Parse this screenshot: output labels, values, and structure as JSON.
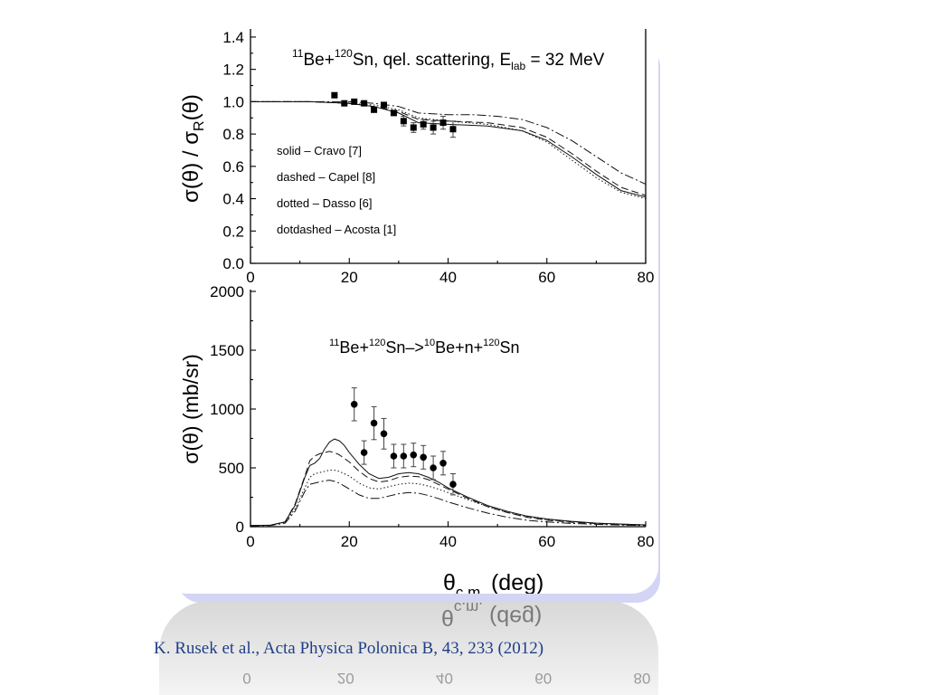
{
  "citation": "K. Rusek et al., Acta Physica Polonica B, 43, 233 (2012)",
  "chart_data": [
    {
      "type": "line",
      "title": {
        "pre": "11",
        "a": "Be+",
        "sup": "120",
        "b": "Sn, qel. scattering, E",
        "sub": "lab",
        "c": " = 32 MeV"
      },
      "xlabel": "",
      "ylabel": {
        "a": "σ(θ) / σ",
        "sub": "R",
        "b": "(θ)"
      },
      "xlim": [
        0,
        80
      ],
      "ylim": [
        0,
        1.45
      ],
      "xticks": [
        "0",
        "20",
        "40",
        "60",
        "80"
      ],
      "yticks": [
        "0.0",
        "0.2",
        "0.4",
        "0.6",
        "0.8",
        "1.0",
        "1.2",
        "1.4"
      ],
      "legend_position": "lower-left",
      "grid": false,
      "legend": [
        {
          "label": "solid – Cravo [7]",
          "dash": ""
        },
        {
          "label": "dashed –  Capel [8]",
          "dash": "8,4"
        },
        {
          "label": "dotted – Dasso [6]",
          "dash": "1.5,2.5"
        },
        {
          "label": "dotdashed – Acosta [1]",
          "dash": "10,3,2,3"
        }
      ],
      "series": [
        {
          "dash": "",
          "values": [
            [
              0,
              1.0
            ],
            [
              12,
              1.0
            ],
            [
              20,
              0.99
            ],
            [
              25,
              0.97
            ],
            [
              30,
              0.93
            ],
            [
              34,
              0.87
            ],
            [
              40,
              0.86
            ],
            [
              48,
              0.85
            ],
            [
              55,
              0.82
            ],
            [
              60,
              0.76
            ],
            [
              65,
              0.66
            ],
            [
              70,
              0.55
            ],
            [
              75,
              0.45
            ],
            [
              80,
              0.41
            ]
          ]
        },
        {
          "dash": "8,4",
          "values": [
            [
              0,
              1.0
            ],
            [
              12,
              1.0
            ],
            [
              20,
              0.99
            ],
            [
              25,
              0.97
            ],
            [
              30,
              0.94
            ],
            [
              34,
              0.89
            ],
            [
              40,
              0.88
            ],
            [
              48,
              0.87
            ],
            [
              55,
              0.84
            ],
            [
              60,
              0.78
            ],
            [
              65,
              0.68
            ],
            [
              70,
              0.57
            ],
            [
              75,
              0.47
            ],
            [
              80,
              0.42
            ]
          ]
        },
        {
          "dash": "1.5,2.5",
          "values": [
            [
              0,
              1.0
            ],
            [
              12,
              1.0
            ],
            [
              20,
              0.99
            ],
            [
              25,
              0.98
            ],
            [
              30,
              0.95
            ],
            [
              34,
              0.9
            ],
            [
              40,
              0.88
            ],
            [
              48,
              0.86
            ],
            [
              55,
              0.82
            ],
            [
              60,
              0.75
            ],
            [
              65,
              0.64
            ],
            [
              70,
              0.53
            ],
            [
              75,
              0.44
            ],
            [
              80,
              0.4
            ]
          ]
        },
        {
          "dash": "10,3,2,3",
          "values": [
            [
              0,
              1.0
            ],
            [
              12,
              1.0
            ],
            [
              20,
              1.0
            ],
            [
              25,
              0.99
            ],
            [
              30,
              0.97
            ],
            [
              34,
              0.93
            ],
            [
              40,
              0.92
            ],
            [
              45,
              0.92
            ],
            [
              50,
              0.91
            ],
            [
              55,
              0.89
            ],
            [
              60,
              0.84
            ],
            [
              65,
              0.76
            ],
            [
              70,
              0.66
            ],
            [
              75,
              0.56
            ],
            [
              80,
              0.49
            ]
          ]
        }
      ],
      "points": [
        {
          "x": 17,
          "y": 1.04,
          "err": 0
        },
        {
          "x": 19,
          "y": 0.99,
          "err": 0
        },
        {
          "x": 21,
          "y": 1.0,
          "err": 0
        },
        {
          "x": 23,
          "y": 0.99,
          "err": 0
        },
        {
          "x": 25,
          "y": 0.95,
          "err": 0
        },
        {
          "x": 27,
          "y": 0.98,
          "err": 0
        },
        {
          "x": 29,
          "y": 0.93,
          "err": 0
        },
        {
          "x": 31,
          "y": 0.88,
          "err": 0.03
        },
        {
          "x": 33,
          "y": 0.84,
          "err": 0.03
        },
        {
          "x": 35,
          "y": 0.86,
          "err": 0.03
        },
        {
          "x": 37,
          "y": 0.84,
          "err": 0.04
        },
        {
          "x": 39,
          "y": 0.87,
          "err": 0.04
        },
        {
          "x": 41,
          "y": 0.83,
          "err": 0.05
        }
      ]
    },
    {
      "type": "line",
      "title": {
        "pre": "11",
        "a": "Be+",
        "sup1": "120",
        "b": "Sn–>",
        "sup2": "10",
        "c": "Be+n+",
        "sup3": "120",
        "d": "Sn"
      },
      "xlabel": {
        "a": "θ",
        "sub": "c.m.",
        "b": "  (deg)"
      },
      "ylabel": "σ(θ)  (mb/sr)",
      "xlim": [
        0,
        80
      ],
      "ylim": [
        0,
        2000
      ],
      "xticks": [
        "0",
        "20",
        "40",
        "60",
        "80"
      ],
      "yticks": [
        "0",
        "500",
        "1000",
        "1500",
        "2000"
      ],
      "grid": false,
      "series": [
        {
          "dash": "",
          "values": [
            [
              0,
              10
            ],
            [
              4,
              12
            ],
            [
              7,
              40
            ],
            [
              9,
              180
            ],
            [
              11,
              420
            ],
            [
              12,
              520
            ],
            [
              13,
              540
            ],
            [
              14,
              580
            ],
            [
              15,
              660
            ],
            [
              16,
              720
            ],
            [
              17,
              745
            ],
            [
              18,
              730
            ],
            [
              19,
              690
            ],
            [
              20,
              630
            ],
            [
              22,
              530
            ],
            [
              24,
              450
            ],
            [
              26,
              410
            ],
            [
              28,
              420
            ],
            [
              30,
              450
            ],
            [
              32,
              460
            ],
            [
              34,
              450
            ],
            [
              36,
              420
            ],
            [
              38,
              380
            ],
            [
              40,
              330
            ],
            [
              44,
              250
            ],
            [
              48,
              180
            ],
            [
              52,
              130
            ],
            [
              56,
              90
            ],
            [
              60,
              65
            ],
            [
              65,
              45
            ],
            [
              70,
              30
            ],
            [
              75,
              22
            ],
            [
              80,
              15
            ]
          ]
        },
        {
          "dash": "8,4",
          "values": [
            [
              0,
              10
            ],
            [
              4,
              12
            ],
            [
              7,
              40
            ],
            [
              9,
              190
            ],
            [
              11,
              430
            ],
            [
              12,
              560
            ],
            [
              13,
              600
            ],
            [
              14,
              620
            ],
            [
              15,
              630
            ],
            [
              16,
              640
            ],
            [
              17,
              630
            ],
            [
              18,
              610
            ],
            [
              20,
              550
            ],
            [
              22,
              470
            ],
            [
              24,
              410
            ],
            [
              26,
              380
            ],
            [
              28,
              390
            ],
            [
              30,
              420
            ],
            [
              32,
              430
            ],
            [
              34,
              425
            ],
            [
              36,
              400
            ],
            [
              38,
              360
            ],
            [
              40,
              320
            ],
            [
              44,
              240
            ],
            [
              48,
              170
            ],
            [
              52,
              120
            ],
            [
              56,
              80
            ],
            [
              60,
              55
            ],
            [
              65,
              38
            ],
            [
              70,
              26
            ],
            [
              75,
              18
            ],
            [
              80,
              12
            ]
          ]
        },
        {
          "dash": "1.5,2.5",
          "values": [
            [
              0,
              10
            ],
            [
              4,
              12
            ],
            [
              7,
              40
            ],
            [
              9,
              150
            ],
            [
              11,
              330
            ],
            [
              12,
              420
            ],
            [
              13,
              450
            ],
            [
              14,
              460
            ],
            [
              15,
              470
            ],
            [
              16,
              480
            ],
            [
              17,
              480
            ],
            [
              18,
              470
            ],
            [
              20,
              430
            ],
            [
              22,
              370
            ],
            [
              24,
              330
            ],
            [
              26,
              320
            ],
            [
              28,
              340
            ],
            [
              30,
              360
            ],
            [
              32,
              370
            ],
            [
              34,
              365
            ],
            [
              36,
              345
            ],
            [
              38,
              320
            ],
            [
              40,
              290
            ],
            [
              44,
              230
            ],
            [
              48,
              170
            ],
            [
              52,
              120
            ],
            [
              56,
              85
            ],
            [
              60,
              60
            ],
            [
              65,
              42
            ],
            [
              70,
              30
            ],
            [
              75,
              22
            ],
            [
              80,
              15
            ]
          ]
        },
        {
          "dash": "10,3,2,3",
          "values": [
            [
              0,
              8
            ],
            [
              4,
              10
            ],
            [
              7,
              30
            ],
            [
              9,
              130
            ],
            [
              11,
              300
            ],
            [
              12,
              360
            ],
            [
              13,
              370
            ],
            [
              14,
              380
            ],
            [
              15,
              390
            ],
            [
              16,
              395
            ],
            [
              17,
              385
            ],
            [
              18,
              370
            ],
            [
              20,
              320
            ],
            [
              22,
              270
            ],
            [
              24,
              240
            ],
            [
              26,
              240
            ],
            [
              28,
              260
            ],
            [
              30,
              280
            ],
            [
              32,
              290
            ],
            [
              34,
              285
            ],
            [
              36,
              265
            ],
            [
              38,
              240
            ],
            [
              40,
              210
            ],
            [
              44,
              160
            ],
            [
              48,
              115
            ],
            [
              52,
              80
            ],
            [
              56,
              55
            ],
            [
              60,
              40
            ],
            [
              65,
              28
            ],
            [
              70,
              20
            ],
            [
              75,
              14
            ],
            [
              80,
              10
            ]
          ]
        }
      ],
      "points": [
        {
          "x": 21,
          "y": 1040,
          "err": 140
        },
        {
          "x": 23,
          "y": 630,
          "err": 100
        },
        {
          "x": 25,
          "y": 880,
          "err": 140
        },
        {
          "x": 27,
          "y": 790,
          "err": 130
        },
        {
          "x": 29,
          "y": 600,
          "err": 100
        },
        {
          "x": 31,
          "y": 600,
          "err": 100
        },
        {
          "x": 33,
          "y": 610,
          "err": 100
        },
        {
          "x": 35,
          "y": 590,
          "err": 100
        },
        {
          "x": 37,
          "y": 500,
          "err": 100
        },
        {
          "x": 39,
          "y": 540,
          "err": 100
        },
        {
          "x": 41,
          "y": 360,
          "err": 90
        }
      ]
    }
  ]
}
